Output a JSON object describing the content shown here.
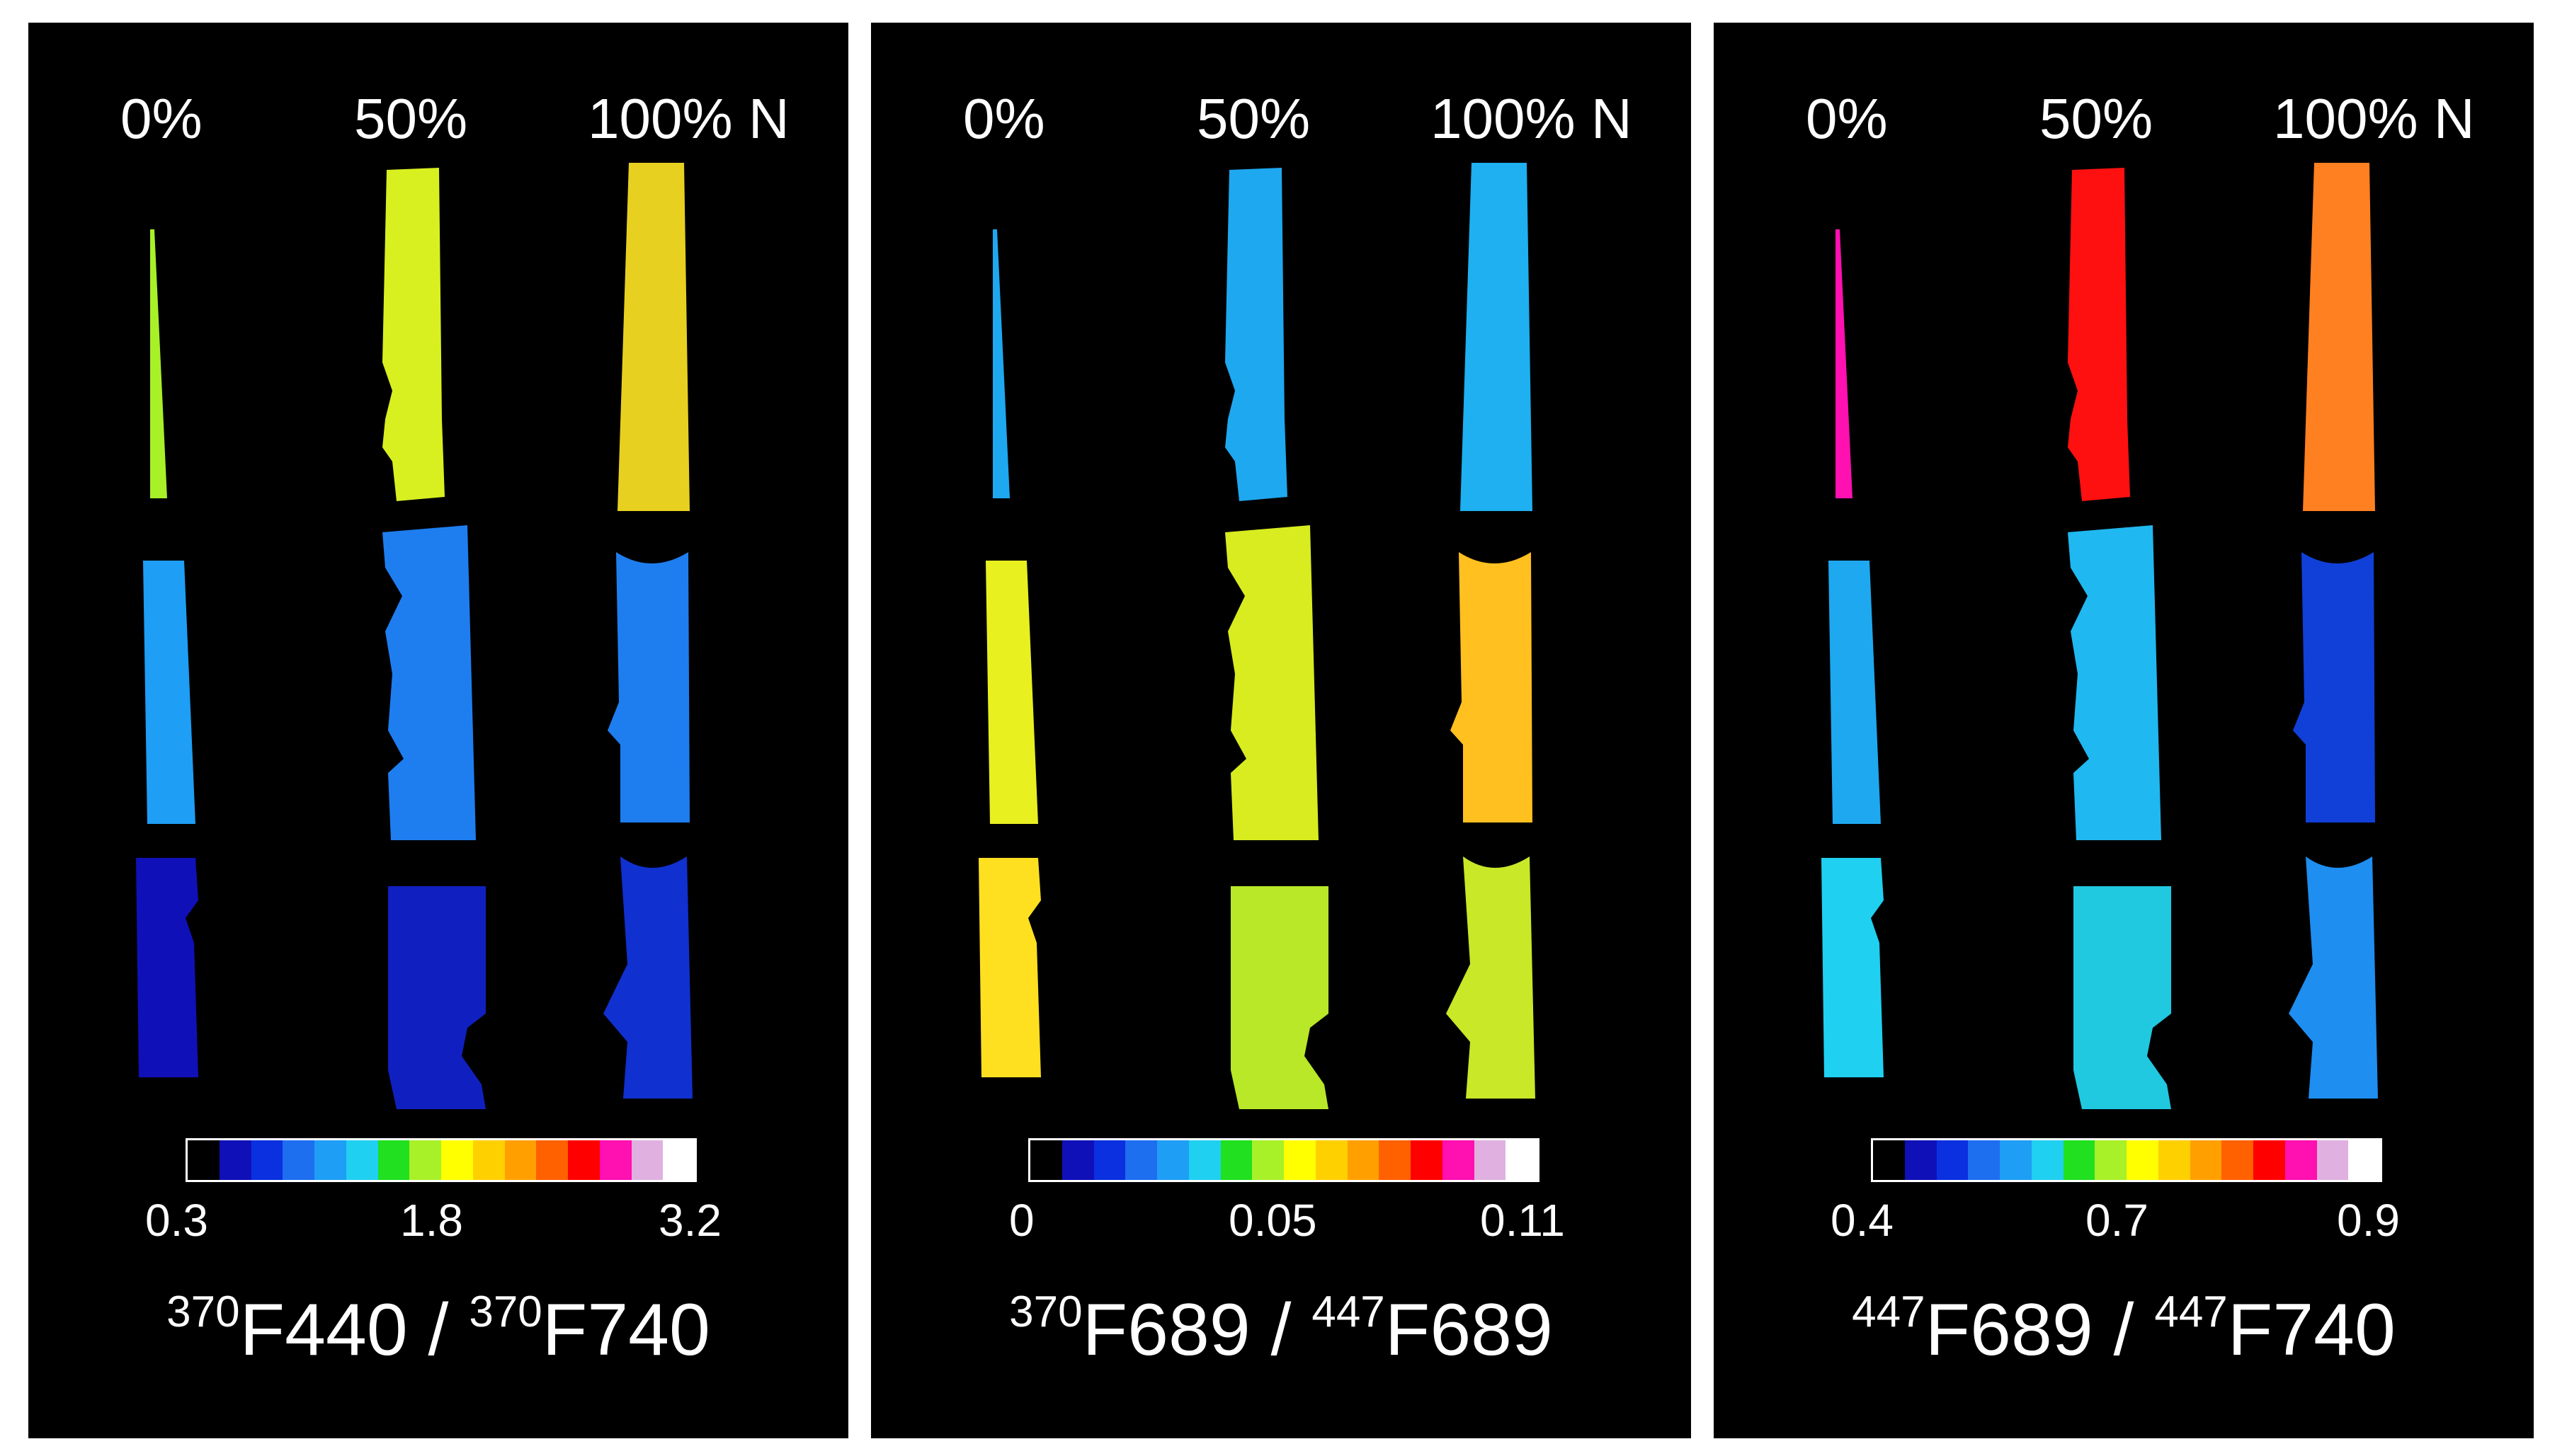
{
  "colormap": [
    "#000000",
    "#1010b8",
    "#0a30e0",
    "#1e6ef0",
    "#1e9ef5",
    "#20d0f0",
    "#20e020",
    "#a8f028",
    "#ffff00",
    "#ffd000",
    "#ffa000",
    "#ff6000",
    "#ff0000",
    "#ff10b0",
    "#e0b0e0",
    "#ffffff"
  ],
  "panels": [
    {
      "columns": [
        "0%",
        "50%",
        "100% N"
      ],
      "colorbar": {
        "min": "0.3",
        "mid": "1.8",
        "max": "3.2"
      },
      "title": {
        "sup1": "370",
        "base1": "F440 / ",
        "sup2": "370",
        "base2": "F740"
      },
      "column_colors": [
        [
          "#a8f028",
          "#d8f020",
          "#e8d020"
        ],
        [
          "#1e9ef5",
          "#1e7ef0",
          "#1e7ef0"
        ],
        [
          "#1010b8",
          "#1020c0",
          "#1030d0"
        ]
      ]
    },
    {
      "columns": [
        "0%",
        "50%",
        "100% N"
      ],
      "colorbar": {
        "min": "0",
        "mid": "0.05",
        "max": "0.11"
      },
      "title": {
        "sup1": "370",
        "base1": "F689 / ",
        "sup2": "447",
        "base2": "F689"
      },
      "column_colors": [
        [
          "#1ea8f0",
          "#1ea8f0",
          "#1eb0f0"
        ],
        [
          "#e8f020",
          "#d8ec20",
          "#ffc020"
        ],
        [
          "#ffe020",
          "#b8e828",
          "#c8e828"
        ]
      ]
    },
    {
      "columns": [
        "0%",
        "50%",
        "100% N"
      ],
      "colorbar": {
        "min": "0.4",
        "mid": "0.7",
        "max": "0.9"
      },
      "title": {
        "sup1": "447",
        "base1": "F689 / ",
        "sup2": "447",
        "base2": "F740"
      },
      "column_colors": [
        [
          "#ff10b0",
          "#ff1010",
          "#ff8020"
        ],
        [
          "#1ea8f0",
          "#20b8f0",
          "#1040d8"
        ],
        [
          "#20d0f0",
          "#20c8e0",
          "#1e8ef0"
        ]
      ]
    }
  ]
}
